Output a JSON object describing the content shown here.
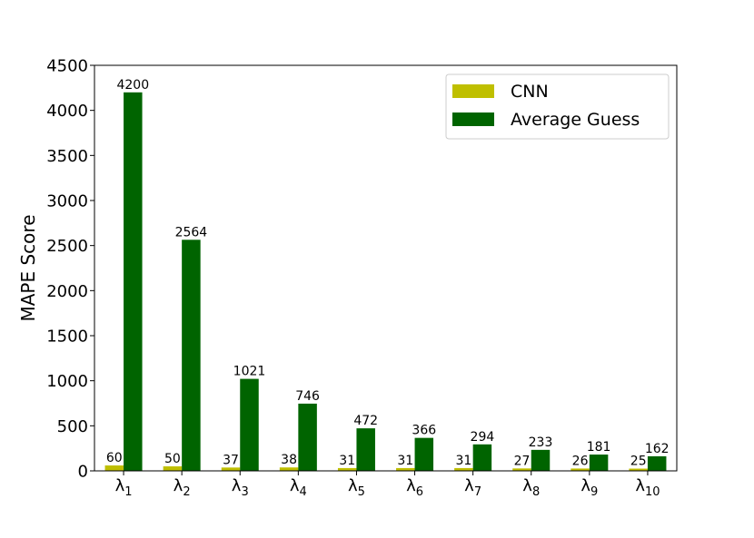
{
  "chart_data": {
    "type": "bar",
    "categories": [
      "λ1",
      "λ2",
      "λ3",
      "λ4",
      "λ5",
      "λ6",
      "λ7",
      "λ8",
      "λ9",
      "λ10"
    ],
    "category_labels": [
      {
        "base": "λ",
        "sub": "1"
      },
      {
        "base": "λ",
        "sub": "2"
      },
      {
        "base": "λ",
        "sub": "3"
      },
      {
        "base": "λ",
        "sub": "4"
      },
      {
        "base": "λ",
        "sub": "5"
      },
      {
        "base": "λ",
        "sub": "6"
      },
      {
        "base": "λ",
        "sub": "7"
      },
      {
        "base": "λ",
        "sub": "8"
      },
      {
        "base": "λ",
        "sub": "9"
      },
      {
        "base": "λ",
        "sub": "10"
      }
    ],
    "series": [
      {
        "name": "CNN",
        "color": "#bfbf00",
        "values": [
          60,
          50,
          37,
          38,
          31,
          31,
          31,
          27,
          26,
          25
        ]
      },
      {
        "name": "Average Guess",
        "color": "#006400",
        "values": [
          4200,
          2564,
          1021,
          746,
          472,
          366,
          294,
          233,
          181,
          162
        ]
      }
    ],
    "title": "",
    "xlabel": "",
    "ylabel": "MAPE Score",
    "ylim": [
      0,
      4500
    ],
    "yticks": [
      0,
      500,
      1000,
      1500,
      2000,
      2500,
      3000,
      3500,
      4000,
      4500
    ],
    "grid": false,
    "legend_position": "top-right"
  }
}
